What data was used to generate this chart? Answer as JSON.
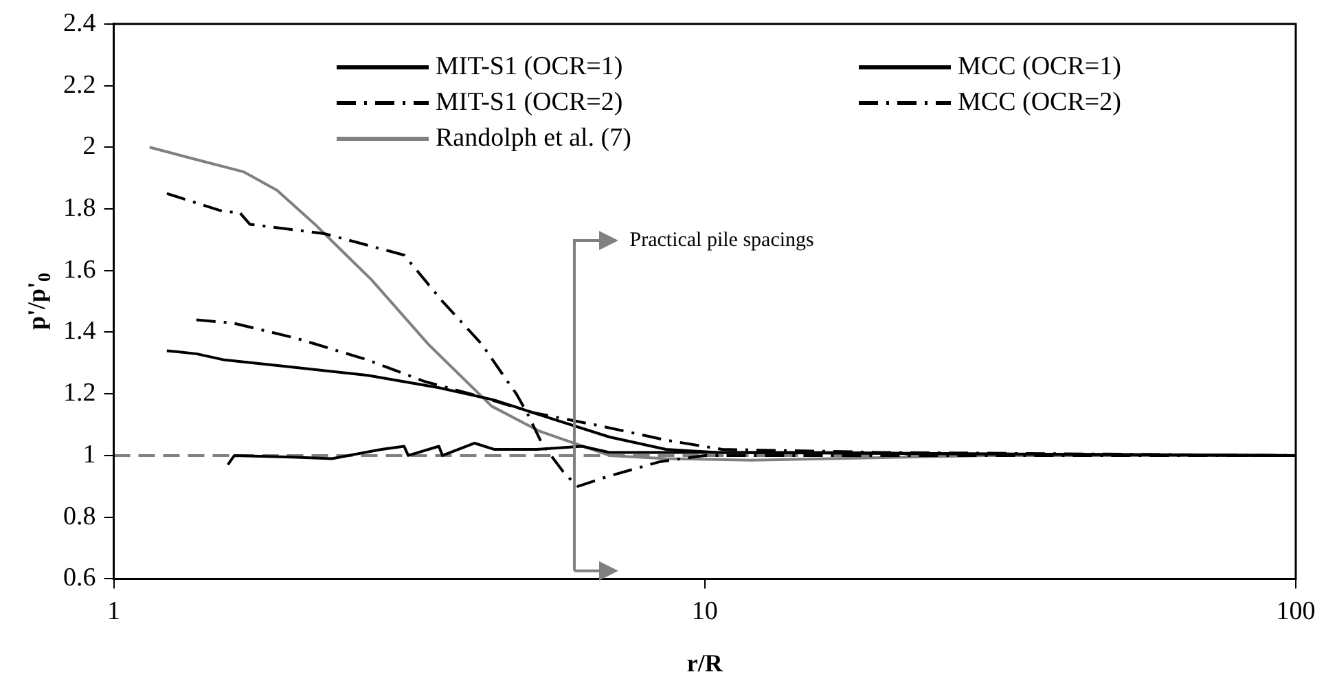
{
  "chart_data": {
    "type": "line",
    "xlabel": "r/R",
    "ylabel": "p'/p'$_{0}$",
    "log": "x",
    "xlim": [
      1,
      100
    ],
    "xticks": [
      1,
      10,
      100
    ],
    "ylim": [
      0.6,
      2.4
    ],
    "yticks": [
      0.6,
      0.8,
      1,
      1.2,
      1.4,
      1.6,
      1.8,
      2,
      2.2,
      2.4
    ],
    "grid": false,
    "legend": "top",
    "marker": "none",
    "series": [
      {
        "name": "MIT-S1 (OCR=1)",
        "color": "#000000",
        "line_style": "solid",
        "x": [
          1.56,
          1.6,
          2.0,
          2.34,
          2.84,
          3.1,
          3.15,
          3.55,
          3.6,
          4.08,
          4.4,
          5.2,
          6.2,
          6.9,
          10,
          15,
          30,
          100
        ],
        "values": [
          0.97,
          1.0,
          0.995,
          0.99,
          1.02,
          1.03,
          1.0,
          1.03,
          1.0,
          1.04,
          1.02,
          1.02,
          1.03,
          1.01,
          1.01,
          1.01,
          1.005,
          1.0
        ]
      },
      {
        "name": "MCC (OCR=1)",
        "color": "#000000",
        "line_style": "solid",
        "x": [
          1.23,
          1.38,
          1.54,
          1.93,
          2.69,
          3.55,
          4.4,
          5.5,
          6.9,
          8.6,
          10.5,
          100
        ],
        "values": [
          1.34,
          1.33,
          1.31,
          1.29,
          1.26,
          1.22,
          1.18,
          1.12,
          1.06,
          1.02,
          1.01,
          1.0
        ]
      },
      {
        "name": "MIT-S1 (OCR=2)",
        "color": "#000000",
        "line_style": "dashdot",
        "x": [
          1.38,
          1.59,
          2.04,
          2.69,
          3.36,
          4.19,
          5.1,
          6.5,
          7.7,
          8.6,
          10.7,
          20,
          100
        ],
        "values": [
          1.44,
          1.43,
          1.38,
          1.31,
          1.24,
          1.19,
          1.14,
          1.1,
          1.07,
          1.05,
          1.02,
          1.01,
          1.0
        ]
      },
      {
        "name": "MCC (OCR=2)",
        "color": "#000000",
        "line_style": "dashdot",
        "x": [
          1.23,
          1.54,
          1.63,
          1.7,
          2.27,
          2.84,
          3.1,
          3.6,
          4.2,
          4.6,
          4.8,
          5.0,
          5.3,
          5.8,
          6.1,
          6.8,
          8.4,
          10,
          100
        ],
        "values": [
          1.85,
          1.79,
          1.79,
          1.75,
          1.72,
          1.67,
          1.65,
          1.5,
          1.36,
          1.25,
          1.2,
          1.14,
          1.04,
          0.94,
          0.9,
          0.93,
          0.98,
          1.0,
          1.0
        ]
      },
      {
        "name": "Randolph et al. (7)",
        "color": "#808080",
        "line_style": "solid",
        "x": [
          1.15,
          1.38,
          1.66,
          1.89,
          2.19,
          2.73,
          3.41,
          4.36,
          5.24,
          6.9,
          8.6,
          12,
          30,
          100
        ],
        "values": [
          2.0,
          1.96,
          1.92,
          1.86,
          1.75,
          1.57,
          1.36,
          1.16,
          1.08,
          1.0,
          0.99,
          0.985,
          1.0,
          1.0
        ]
      }
    ],
    "ref_lines": [
      {
        "axis": "y",
        "value": 1,
        "color": "#808080",
        "line_style": "dashed"
      }
    ],
    "annotations": [
      "Practical pile spacings"
    ]
  }
}
